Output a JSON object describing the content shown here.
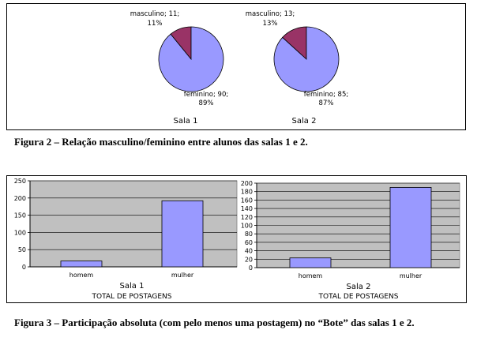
{
  "figure2": {
    "caption": "Figura 2 – Relação masculino/feminino entre alunos das salas 1 e 2."
  },
  "figure3": {
    "caption": "Figura 3 – Participação absoluta (com pelo menos uma postagem) no “Bote” das salas 1 e 2."
  },
  "colors": {
    "male": "#993366",
    "female": "#9999ff",
    "plot_bg": "#c0c0c0"
  },
  "chart_data": [
    {
      "type": "pie",
      "xlabel": "Sala 1",
      "slices": [
        {
          "name": "masculino",
          "value": 11,
          "percent": "11%",
          "label_line1": "masculino; 11;",
          "label_line2": "11%"
        },
        {
          "name": "feminino",
          "value": 90,
          "percent": "89%",
          "label_line1": "feminino; 90;",
          "label_line2": "89%"
        }
      ]
    },
    {
      "type": "pie",
      "xlabel": "Sala 2",
      "slices": [
        {
          "name": "masculino",
          "value": 13,
          "percent": "13%",
          "label_line1": "masculino; 13;",
          "label_line2": "13%"
        },
        {
          "name": "feminino",
          "value": 85,
          "percent": "87%",
          "label_line1": "feminino; 85;",
          "label_line2": "87%"
        }
      ]
    },
    {
      "type": "bar",
      "categories": [
        "homem",
        "mulher"
      ],
      "values": [
        17,
        192
      ],
      "xlabel": "Sala 1",
      "subtitle": "TOTAL DE POSTAGENS",
      "ylim": [
        0,
        250
      ],
      "yticks": [
        0,
        50,
        100,
        150,
        200,
        250
      ],
      "grid": true
    },
    {
      "type": "bar",
      "categories": [
        "homem",
        "mulher"
      ],
      "values": [
        23,
        190
      ],
      "xlabel": "Sala 2",
      "subtitle": "TOTAL DE POSTAGENS",
      "ylim": [
        0,
        200
      ],
      "yticks": [
        0,
        20,
        40,
        60,
        80,
        100,
        120,
        140,
        160,
        180,
        200
      ],
      "grid": true
    }
  ]
}
